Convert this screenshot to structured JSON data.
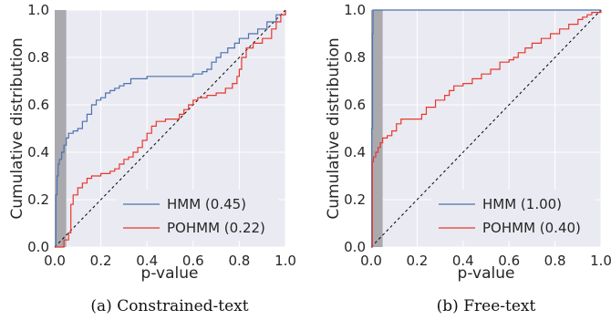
{
  "chart_data": [
    {
      "type": "line",
      "caption": "(a) Constrained-text",
      "xlabel": "p-value",
      "ylabel": "Cumulative distribution",
      "xlim": [
        0.0,
        1.0
      ],
      "ylim": [
        0.0,
        1.0
      ],
      "xticks": [
        "0.0",
        "0.2",
        "0.4",
        "0.6",
        "0.8",
        "1.0"
      ],
      "yticks": [
        "0.0",
        "0.2",
        "0.4",
        "0.6",
        "0.8",
        "1.0"
      ],
      "grid": true,
      "legend_position": "lower-right",
      "shaded_region": [
        0.0,
        0.05
      ],
      "reference_line": "diagonal",
      "series": [
        {
          "name": "HMM (0.45)",
          "color": "#4c72b0",
          "points": [
            [
              0.0,
              0.0
            ],
            [
              0.005,
              0.22
            ],
            [
              0.01,
              0.3
            ],
            [
              0.015,
              0.35
            ],
            [
              0.02,
              0.37
            ],
            [
              0.03,
              0.4
            ],
            [
              0.04,
              0.43
            ],
            [
              0.05,
              0.46
            ],
            [
              0.06,
              0.48
            ],
            [
              0.08,
              0.49
            ],
            [
              0.1,
              0.5
            ],
            [
              0.12,
              0.53
            ],
            [
              0.14,
              0.56
            ],
            [
              0.16,
              0.6
            ],
            [
              0.18,
              0.62
            ],
            [
              0.2,
              0.63
            ],
            [
              0.22,
              0.65
            ],
            [
              0.24,
              0.66
            ],
            [
              0.26,
              0.67
            ],
            [
              0.28,
              0.68
            ],
            [
              0.3,
              0.69
            ],
            [
              0.33,
              0.71
            ],
            [
              0.36,
              0.71
            ],
            [
              0.4,
              0.72
            ],
            [
              0.45,
              0.72
            ],
            [
              0.5,
              0.72
            ],
            [
              0.55,
              0.72
            ],
            [
              0.6,
              0.73
            ],
            [
              0.64,
              0.74
            ],
            [
              0.66,
              0.75
            ],
            [
              0.68,
              0.78
            ],
            [
              0.7,
              0.8
            ],
            [
              0.72,
              0.82
            ],
            [
              0.75,
              0.84
            ],
            [
              0.78,
              0.86
            ],
            [
              0.8,
              0.88
            ],
            [
              0.84,
              0.9
            ],
            [
              0.88,
              0.92
            ],
            [
              0.92,
              0.95
            ],
            [
              0.96,
              0.98
            ],
            [
              1.0,
              1.0
            ]
          ]
        },
        {
          "name": "POHMM (0.22)",
          "color": "#e8372c",
          "points": [
            [
              0.0,
              0.0
            ],
            [
              0.04,
              0.03
            ],
            [
              0.06,
              0.06
            ],
            [
              0.07,
              0.18
            ],
            [
              0.08,
              0.22
            ],
            [
              0.1,
              0.25
            ],
            [
              0.12,
              0.27
            ],
            [
              0.14,
              0.29
            ],
            [
              0.16,
              0.3
            ],
            [
              0.2,
              0.31
            ],
            [
              0.24,
              0.32
            ],
            [
              0.26,
              0.33
            ],
            [
              0.28,
              0.35
            ],
            [
              0.3,
              0.37
            ],
            [
              0.32,
              0.38
            ],
            [
              0.34,
              0.4
            ],
            [
              0.36,
              0.42
            ],
            [
              0.38,
              0.45
            ],
            [
              0.4,
              0.48
            ],
            [
              0.42,
              0.51
            ],
            [
              0.44,
              0.53
            ],
            [
              0.48,
              0.54
            ],
            [
              0.52,
              0.54
            ],
            [
              0.54,
              0.56
            ],
            [
              0.56,
              0.58
            ],
            [
              0.58,
              0.6
            ],
            [
              0.6,
              0.62
            ],
            [
              0.62,
              0.63
            ],
            [
              0.66,
              0.64
            ],
            [
              0.7,
              0.65
            ],
            [
              0.74,
              0.67
            ],
            [
              0.77,
              0.69
            ],
            [
              0.79,
              0.72
            ],
            [
              0.8,
              0.75
            ],
            [
              0.81,
              0.8
            ],
            [
              0.83,
              0.84
            ],
            [
              0.86,
              0.86
            ],
            [
              0.9,
              0.88
            ],
            [
              0.94,
              0.92
            ],
            [
              0.96,
              0.95
            ],
            [
              0.98,
              0.98
            ],
            [
              1.0,
              1.0
            ]
          ]
        }
      ]
    },
    {
      "type": "line",
      "caption": "(b) Free-text",
      "xlabel": "p-value",
      "ylabel": "Cumulative distribution",
      "xlim": [
        0.0,
        1.0
      ],
      "ylim": [
        0.0,
        1.0
      ],
      "xticks": [
        "0.0",
        "0.2",
        "0.4",
        "0.6",
        "0.8",
        "1.0"
      ],
      "yticks": [
        "0.0",
        "0.2",
        "0.4",
        "0.6",
        "0.8",
        "1.0"
      ],
      "grid": true,
      "legend_position": "lower-right",
      "shaded_region": [
        0.0,
        0.05
      ],
      "reference_line": "diagonal",
      "series": [
        {
          "name": "HMM (1.00)",
          "color": "#4c72b0",
          "points": [
            [
              0.0,
              0.0
            ],
            [
              0.003,
              0.5
            ],
            [
              0.006,
              0.9
            ],
            [
              0.008,
              1.0
            ],
            [
              1.0,
              1.0
            ]
          ]
        },
        {
          "name": "POHMM (0.40)",
          "color": "#e8372c",
          "points": [
            [
              0.0,
              0.0
            ],
            [
              0.005,
              0.36
            ],
            [
              0.01,
              0.38
            ],
            [
              0.02,
              0.4
            ],
            [
              0.03,
              0.42
            ],
            [
              0.04,
              0.44
            ],
            [
              0.05,
              0.46
            ],
            [
              0.07,
              0.47
            ],
            [
              0.09,
              0.49
            ],
            [
              0.11,
              0.52
            ],
            [
              0.13,
              0.54
            ],
            [
              0.2,
              0.54
            ],
            [
              0.22,
              0.56
            ],
            [
              0.24,
              0.59
            ],
            [
              0.28,
              0.62
            ],
            [
              0.32,
              0.64
            ],
            [
              0.34,
              0.66
            ],
            [
              0.36,
              0.68
            ],
            [
              0.4,
              0.69
            ],
            [
              0.44,
              0.71
            ],
            [
              0.48,
              0.73
            ],
            [
              0.52,
              0.75
            ],
            [
              0.56,
              0.78
            ],
            [
              0.6,
              0.79
            ],
            [
              0.62,
              0.8
            ],
            [
              0.64,
              0.82
            ],
            [
              0.67,
              0.84
            ],
            [
              0.7,
              0.86
            ],
            [
              0.74,
              0.88
            ],
            [
              0.78,
              0.9
            ],
            [
              0.82,
              0.92
            ],
            [
              0.86,
              0.94
            ],
            [
              0.9,
              0.96
            ],
            [
              0.92,
              0.97
            ],
            [
              0.94,
              0.98
            ],
            [
              0.96,
              0.99
            ],
            [
              1.0,
              1.0
            ]
          ]
        }
      ]
    }
  ]
}
